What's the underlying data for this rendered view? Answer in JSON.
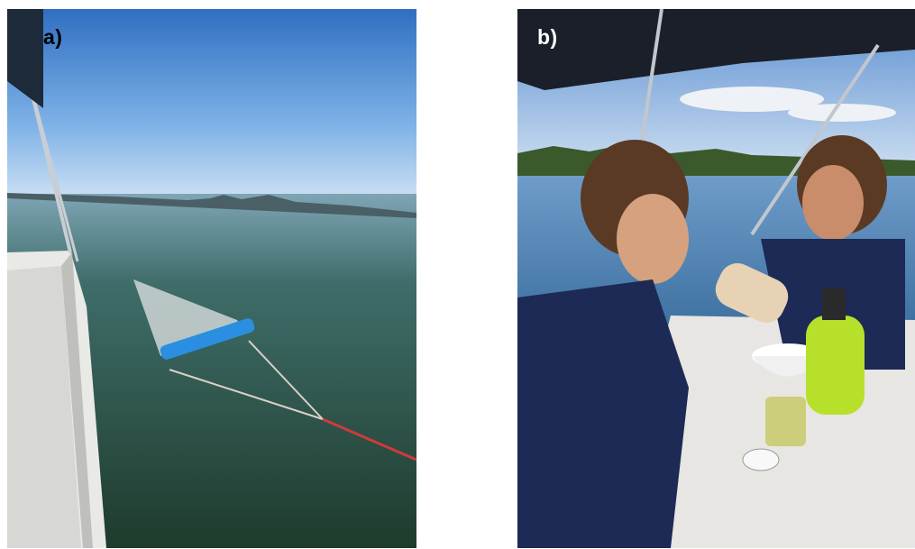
{
  "figure": {
    "panels": [
      {
        "label": "a)",
        "scene": "net-tow-from-boat"
      },
      {
        "label": "b)",
        "scene": "sample-filtering-on-boat"
      }
    ]
  }
}
